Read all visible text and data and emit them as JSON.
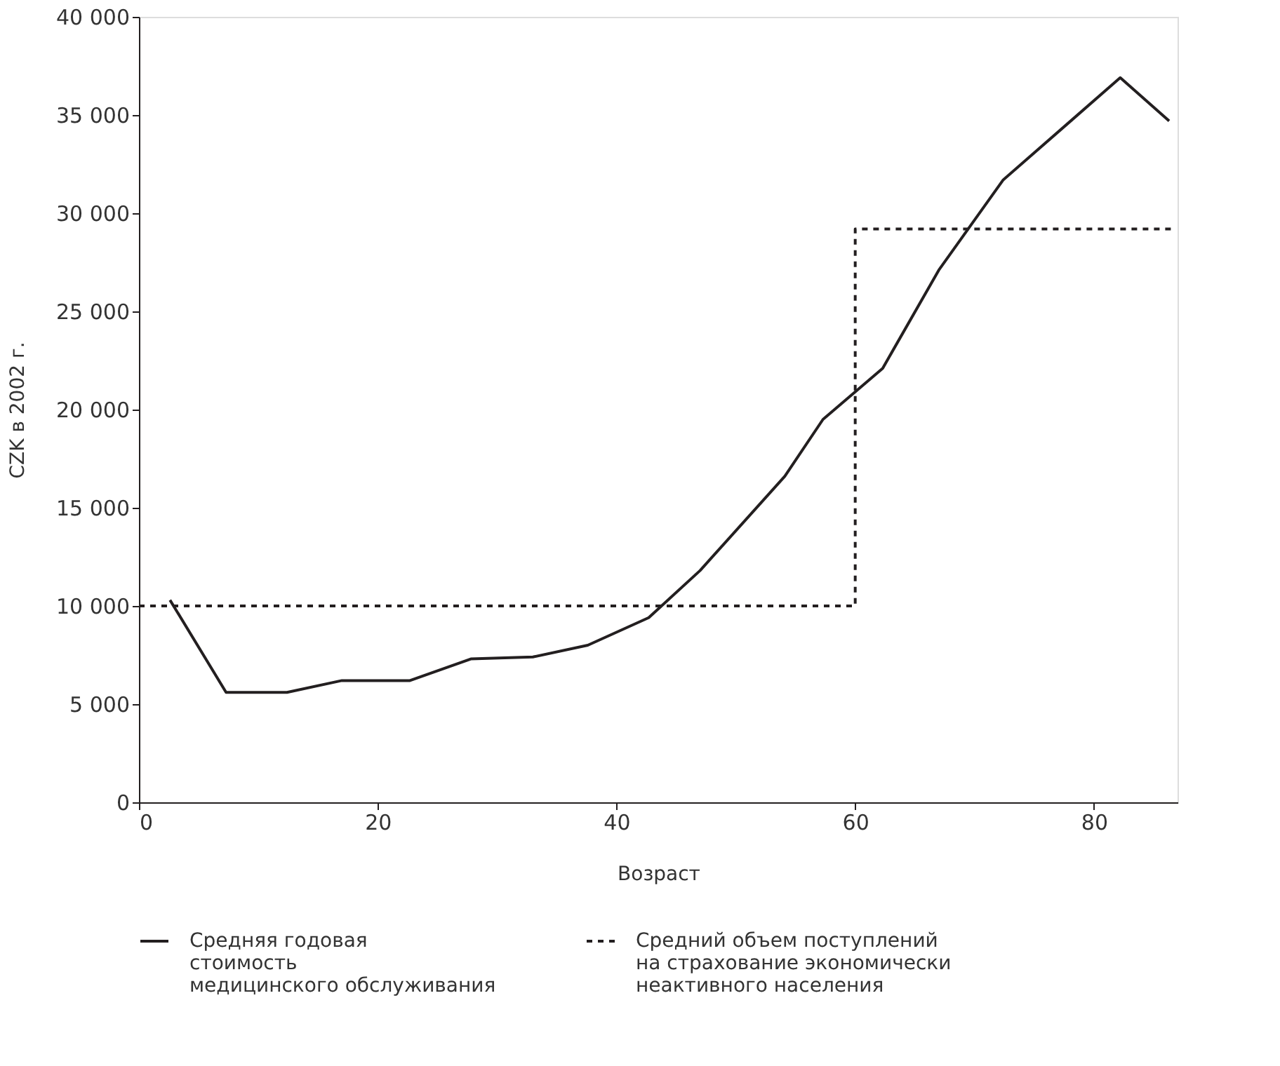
{
  "chart_data": {
    "type": "line",
    "xlabel": "Возраст",
    "ylabel": "CZK в 2002 г.",
    "xlim": [
      0,
      87
    ],
    "xticks": [
      0,
      20,
      40,
      60,
      80
    ],
    "ylim": [
      0,
      40000
    ],
    "yticks": [
      {
        "value": 0,
        "label": "0"
      },
      {
        "value": 5000,
        "label": "5 000"
      },
      {
        "value": 10000,
        "label": "10 000"
      },
      {
        "value": 15000,
        "label": "15 000"
      },
      {
        "value": 20000,
        "label": "20 000"
      },
      {
        "value": 25000,
        "label": "25 000"
      },
      {
        "value": 30000,
        "label": "30 000"
      },
      {
        "value": 35000,
        "label": "35 000"
      },
      {
        "value": 40000,
        "label": "40 000"
      }
    ],
    "grid": false,
    "legend": "bottom",
    "series": [
      {
        "name": "Средняя годовая\n стоимость\nмедицинского обслуживания",
        "color": "#231f20",
        "line_style": "solid",
        "x": [
          2.6,
          7.3,
          12.4,
          17,
          22.7,
          27.8,
          33,
          37.6,
          42.7,
          47,
          54.1,
          57.3,
          62.3,
          67,
          72.4,
          82.2,
          86.3
        ],
        "values": [
          10300,
          5600,
          5600,
          6200,
          6200,
          7300,
          7400,
          8000,
          9400,
          11800,
          16600,
          19500,
          22100,
          27100,
          31700,
          36900,
          34700
        ]
      },
      {
        "name": "Средний объем поступлений\nна страхование экономически\nнеактивного населения",
        "color": "#231f20",
        "type": "step",
        "line_style": "dashed",
        "x": [
          0,
          60,
          86.7
        ],
        "values": [
          10000,
          29200,
          29200
        ]
      }
    ]
  }
}
